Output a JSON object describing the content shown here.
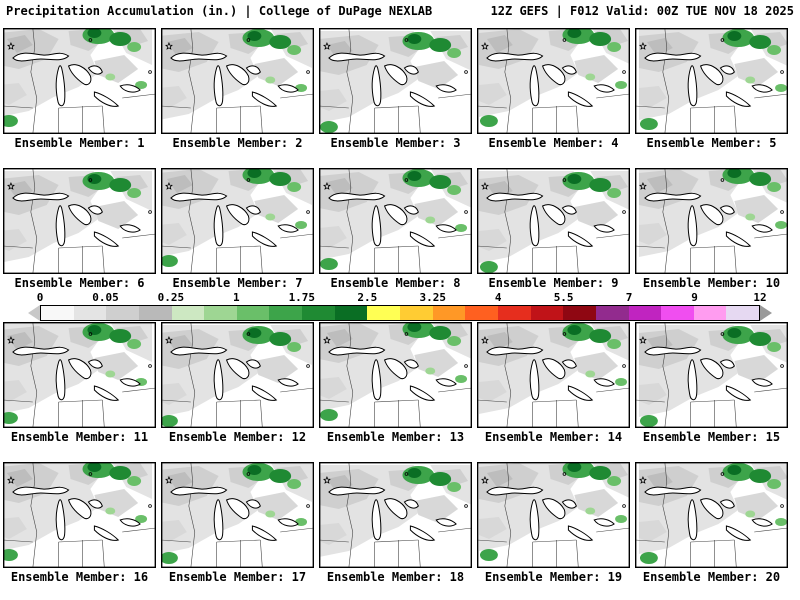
{
  "header": {
    "left": "Precipitation Accumulation (in.) | College of DuPage NEXLAB",
    "right": "12Z GEFS | F012 Valid: 00Z TUE NOV 18 2025"
  },
  "panels": [
    {
      "label": "Ensemble Member: 1"
    },
    {
      "label": "Ensemble Member: 2"
    },
    {
      "label": "Ensemble Member: 3"
    },
    {
      "label": "Ensemble Member: 4"
    },
    {
      "label": "Ensemble Member: 5"
    },
    {
      "label": "Ensemble Member: 6"
    },
    {
      "label": "Ensemble Member: 7"
    },
    {
      "label": "Ensemble Member: 8"
    },
    {
      "label": "Ensemble Member: 9"
    },
    {
      "label": "Ensemble Member: 10"
    },
    {
      "label": "Ensemble Member: 11"
    },
    {
      "label": "Ensemble Member: 12"
    },
    {
      "label": "Ensemble Member: 13"
    },
    {
      "label": "Ensemble Member: 14"
    },
    {
      "label": "Ensemble Member: 15"
    },
    {
      "label": "Ensemble Member: 16"
    },
    {
      "label": "Ensemble Member: 17"
    },
    {
      "label": "Ensemble Member: 18"
    },
    {
      "label": "Ensemble Member: 19"
    },
    {
      "label": "Ensemble Member: 20"
    }
  ],
  "colorbar": {
    "units": "in.",
    "ticks": [
      "0",
      "0.05",
      "0.25",
      "1",
      "1.75",
      "2.5",
      "3.25",
      "4",
      "5.5",
      "7",
      "9",
      "12"
    ],
    "segments": [
      "#f8f8f8",
      "#e4e4e4",
      "#cfcfcf",
      "#b9b9b9",
      "#cde8c2",
      "#9ed693",
      "#6abf69",
      "#3da44a",
      "#1f8a33",
      "#0a6e24",
      "#ffff54",
      "#ffcc33",
      "#ff9826",
      "#ff6020",
      "#e62e1e",
      "#c01318",
      "#8f0712",
      "#922b8e",
      "#c024c0",
      "#f04ef0",
      "#ff9cf0",
      "#e6d9f2"
    ]
  },
  "colors": {
    "background": "#ffffff",
    "text": "#000000",
    "map_border": "#000000",
    "shade_light": "#e3e3e3",
    "shade_mid": "#cfcfcf",
    "shade_dark": "#bdbdbd",
    "green_light": "#9ed693",
    "green_mid": "#3da44a",
    "green_dark": "#0a6e24"
  }
}
